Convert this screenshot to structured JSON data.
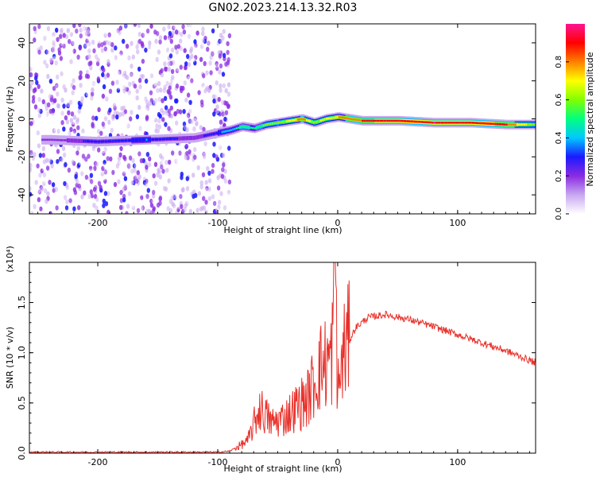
{
  "title": "GN02.2023.214.13.32.R03",
  "chart_data": [
    {
      "type": "heatmap",
      "xlabel": "Height of straight line (km)",
      "ylabel": "Frequency (Hz)",
      "xlim": [
        -257,
        165
      ],
      "ylim": [
        -50,
        50
      ],
      "xticks": [
        -200,
        -100,
        0,
        100
      ],
      "yticks": [
        -40,
        -20,
        0,
        20,
        40
      ],
      "colorbar": {
        "label": "Normalized spectral amplitude",
        "range": [
          0,
          1
        ],
        "ticks": [
          "0.0",
          "0.2",
          "0.4",
          "0.6",
          "0.8"
        ],
        "colormap": [
          "#ffffff",
          "#c8a8f0",
          "#8a2be2",
          "#1a1aff",
          "#00c8ff",
          "#00ff80",
          "#80ff00",
          "#ffff00",
          "#ff8000",
          "#ff0000",
          "#ff1493"
        ]
      },
      "ridge": {
        "x": [
          -240,
          -200,
          -160,
          -120,
          -90,
          -80,
          -70,
          -60,
          -50,
          -40,
          -30,
          -20,
          -10,
          0,
          20,
          50,
          80,
          110,
          140,
          165
        ],
        "y": [
          -11,
          -12,
          -11,
          -10,
          -6,
          -4,
          -5,
          -3,
          -2,
          -1,
          0,
          -2,
          0,
          1,
          -1,
          -1,
          -2,
          -2,
          -3,
          -3
        ],
        "amplitude": [
          0.15,
          0.3,
          0.35,
          0.2,
          0.4,
          0.5,
          0.45,
          0.6,
          0.55,
          0.7,
          0.8,
          0.6,
          0.7,
          0.75,
          0.85,
          0.9,
          0.95,
          0.9,
          0.85,
          0.55
        ]
      },
      "noise_region_x": [
        -257,
        -90
      ]
    },
    {
      "type": "line",
      "xlabel": "Height of straight line (km)",
      "ylabel": "SNR (10 * v/v)",
      "y_multiplier_label": "(x10⁴)",
      "xlim": [
        -257,
        165
      ],
      "ylim": [
        0,
        1.9
      ],
      "xticks": [
        -200,
        -100,
        0,
        100
      ],
      "yticks": [
        "0.0",
        "0.5",
        "1.0",
        "1.5"
      ],
      "series": [
        {
          "color": "#e8302a",
          "x": [
            -257,
            -100,
            -90,
            -75,
            -65,
            -55,
            -45,
            -35,
            -25,
            -15,
            -5,
            -2,
            0,
            5,
            15,
            25,
            40,
            60,
            80,
            100,
            120,
            140,
            165
          ],
          "y": [
            0.01,
            0.01,
            0.02,
            0.12,
            0.45,
            0.3,
            0.35,
            0.45,
            0.55,
            0.85,
            0.95,
            1.9,
            0.6,
            1.0,
            1.25,
            1.35,
            1.38,
            1.33,
            1.26,
            1.18,
            1.1,
            1.02,
            0.9
          ]
        }
      ]
    }
  ]
}
